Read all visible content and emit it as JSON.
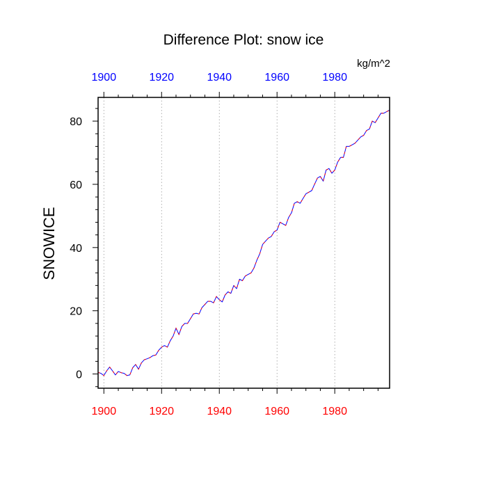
{
  "chart_data": {
    "type": "line",
    "title": "Difference Plot: snow ice",
    "units_label": "kg/m^2",
    "xlabel": "",
    "ylabel": "SNOWICE",
    "xlim": [
      1898,
      1999
    ],
    "ylim": [
      -4.5,
      87.5
    ],
    "x_ticks": [
      1900,
      1920,
      1940,
      1960,
      1980
    ],
    "x_tick_labels": [
      "1900",
      "1920",
      "1940",
      "1960",
      "1980"
    ],
    "y_ticks": [
      0,
      20,
      40,
      60,
      80
    ],
    "y_tick_labels": [
      "0",
      "20",
      "40",
      "60",
      "80"
    ],
    "grid": "vertical dotted at major x ticks",
    "colors": {
      "bottom_axis_labels": "#ff0000",
      "top_axis_labels": "#0000ff",
      "series_main": "#0000ff",
      "series_overlay": "#ff0000"
    },
    "x": [
      1898,
      1899,
      1900,
      1901,
      1902,
      1903,
      1904,
      1905,
      1906,
      1907,
      1908,
      1909,
      1910,
      1911,
      1912,
      1913,
      1914,
      1915,
      1916,
      1917,
      1918,
      1919,
      1920,
      1921,
      1922,
      1923,
      1924,
      1925,
      1926,
      1927,
      1928,
      1929,
      1930,
      1931,
      1932,
      1933,
      1934,
      1935,
      1936,
      1937,
      1938,
      1939,
      1940,
      1941,
      1942,
      1943,
      1944,
      1945,
      1946,
      1947,
      1948,
      1949,
      1950,
      1951,
      1952,
      1953,
      1954,
      1955,
      1956,
      1957,
      1958,
      1959,
      1960,
      1961,
      1962,
      1963,
      1964,
      1965,
      1966,
      1967,
      1968,
      1969,
      1970,
      1971,
      1972,
      1973,
      1974,
      1975,
      1976,
      1977,
      1978,
      1979,
      1980,
      1981,
      1982,
      1983,
      1984,
      1985,
      1986,
      1987,
      1988,
      1989,
      1990,
      1991,
      1992,
      1993,
      1994,
      1995,
      1996,
      1997,
      1998,
      1999
    ],
    "series": [
      {
        "values": [
          0.5,
          0.2,
          -0.5,
          1.0,
          2.2,
          1.0,
          -0.3,
          0.8,
          0.4,
          0.2,
          -0.5,
          -0.3,
          2.0,
          3.0,
          1.5,
          3.5,
          4.5,
          4.8,
          5.2,
          5.8,
          6.0,
          7.5,
          8.5,
          9.0,
          8.5,
          10.5,
          12.0,
          14.5,
          12.5,
          15.0,
          16.0,
          16.0,
          17.5,
          19.0,
          19.2,
          19.0,
          21.0,
          22.0,
          23.0,
          23.0,
          22.5,
          24.5,
          23.5,
          22.8,
          25.0,
          26.0,
          25.5,
          28.0,
          27.0,
          30.0,
          29.5,
          31.0,
          31.5,
          32.0,
          33.5,
          36.0,
          38.0,
          41.0,
          42.0,
          43.0,
          43.5,
          45.0,
          45.5,
          48.0,
          47.5,
          47.0,
          49.5,
          51.0,
          54.0,
          54.5,
          54.0,
          55.5,
          57.0,
          57.5,
          58.0,
          60.0,
          62.0,
          62.5,
          61.0,
          64.5,
          65.0,
          63.5,
          64.5,
          67.0,
          68.5,
          68.5,
          72.0,
          72.0,
          72.5,
          73.0,
          74.0,
          75.0,
          75.5,
          77.0,
          77.5,
          80.0,
          79.5,
          81.0,
          82.5,
          82.5,
          83.0,
          83.5
        ]
      }
    ]
  }
}
